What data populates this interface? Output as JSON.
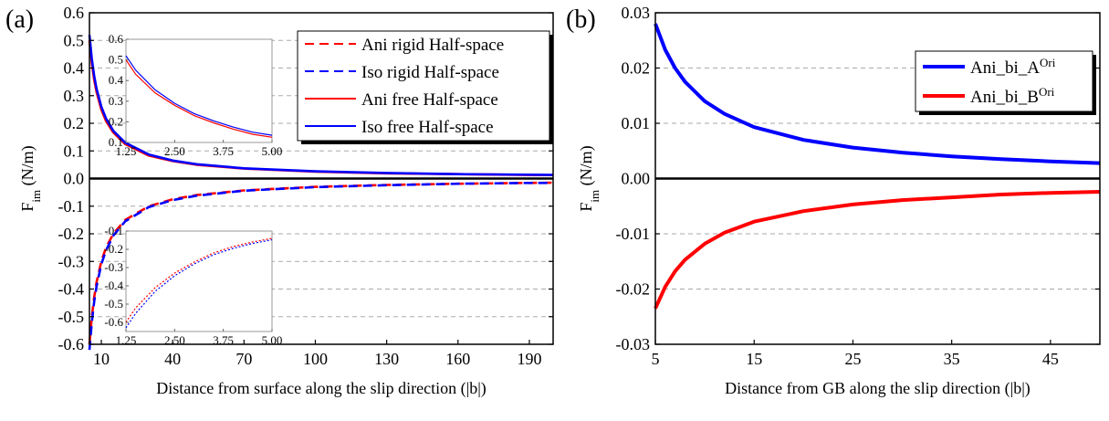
{
  "chart_data": [
    {
      "panel_label": "(a)",
      "type": "line",
      "xlabel": "Distance from surface along the slip direction (|b|)",
      "ylabel_main": "F",
      "ylabel_sub": "im",
      "ylabel_unit": " (N/m)",
      "xlim": [
        5,
        200
      ],
      "ylim": [
        -0.6,
        0.6
      ],
      "xticks": [
        "10",
        "40",
        "70",
        "100",
        "130",
        "160",
        "190"
      ],
      "xtick_values": [
        10,
        40,
        70,
        100,
        130,
        160,
        190
      ],
      "yticks": [
        "-0.6",
        "-0.5",
        "-0.4",
        "-0.3",
        "-0.2",
        "-0.1",
        "0.0",
        "0.1",
        "0.2",
        "0.3",
        "0.4",
        "0.5",
        "0.6"
      ],
      "ytick_values": [
        -0.6,
        -0.5,
        -0.4,
        -0.3,
        -0.2,
        -0.1,
        0.0,
        0.1,
        0.2,
        0.3,
        0.4,
        0.5,
        0.6
      ],
      "grid": "horizontal dashed",
      "legend_position": "top-right",
      "series": [
        {
          "name": "Ani rigid Half-space",
          "color": "#ff0000",
          "style": "dashed",
          "x": [
            5,
            6,
            7,
            8,
            10,
            12,
            15,
            20,
            30,
            40,
            50,
            70,
            100,
            130,
            160,
            190,
            200
          ],
          "y": [
            -0.6,
            -0.5,
            -0.43,
            -0.375,
            -0.3,
            -0.25,
            -0.2,
            -0.15,
            -0.1,
            -0.075,
            -0.06,
            -0.043,
            -0.03,
            -0.023,
            -0.019,
            -0.016,
            -0.015
          ]
        },
        {
          "name": "Iso rigid Half-space",
          "color": "#0000ff",
          "style": "dashed",
          "x": [
            5,
            6,
            7,
            8,
            10,
            12,
            15,
            20,
            30,
            40,
            50,
            70,
            100,
            130,
            160,
            190,
            200
          ],
          "y": [
            -0.62,
            -0.52,
            -0.445,
            -0.39,
            -0.31,
            -0.26,
            -0.207,
            -0.155,
            -0.103,
            -0.078,
            -0.062,
            -0.044,
            -0.031,
            -0.024,
            -0.019,
            -0.016,
            -0.016
          ]
        },
        {
          "name": "Ani free Half-space",
          "color": "#ff0000",
          "style": "solid",
          "x": [
            5,
            6,
            7,
            8,
            10,
            12,
            15,
            20,
            30,
            40,
            50,
            70,
            100,
            130,
            160,
            190,
            200
          ],
          "y": [
            0.5,
            0.417,
            0.357,
            0.313,
            0.25,
            0.208,
            0.167,
            0.125,
            0.083,
            0.063,
            0.05,
            0.036,
            0.025,
            0.019,
            0.016,
            0.013,
            0.0125
          ]
        },
        {
          "name": "Iso free Half-space",
          "color": "#0000ff",
          "style": "solid",
          "x": [
            5,
            6,
            7,
            8,
            10,
            12,
            15,
            20,
            30,
            40,
            50,
            70,
            100,
            130,
            160,
            190,
            200
          ],
          "y": [
            0.52,
            0.433,
            0.371,
            0.325,
            0.26,
            0.217,
            0.173,
            0.13,
            0.087,
            0.065,
            0.052,
            0.037,
            0.026,
            0.02,
            0.016,
            0.014,
            0.013
          ]
        }
      ],
      "insets": [
        {
          "xlim": [
            1.25,
            5.0
          ],
          "ylim": [
            0.1,
            0.6
          ],
          "xticks": [
            "1.25",
            "2.50",
            "3.75",
            "5.00"
          ],
          "xtick_values": [
            1.25,
            2.5,
            3.75,
            5.0
          ],
          "yticks": [
            "0.1",
            "0.2",
            "0.3",
            "0.4",
            "0.5",
            "0.6"
          ],
          "ytick_values": [
            0.1,
            0.2,
            0.3,
            0.4,
            0.5,
            0.6
          ],
          "series": [
            {
              "color": "#ff0000",
              "style": "solid",
              "x": [
                1.25,
                1.5,
                2.0,
                2.5,
                3.0,
                3.5,
                4.0,
                4.5,
                5.0
              ],
              "y": [
                0.5,
                0.43,
                0.34,
                0.28,
                0.23,
                0.195,
                0.165,
                0.14,
                0.125
              ]
            },
            {
              "color": "#0000ff",
              "style": "solid",
              "x": [
                1.25,
                1.5,
                2.0,
                2.5,
                3.0,
                3.5,
                4.0,
                4.5,
                5.0
              ],
              "y": [
                0.52,
                0.45,
                0.355,
                0.29,
                0.24,
                0.205,
                0.175,
                0.15,
                0.135
              ]
            }
          ]
        },
        {
          "xlim": [
            1.25,
            5.0
          ],
          "ylim": [
            -0.65,
            -0.1
          ],
          "xticks": [
            "1.25",
            "2.50",
            "3.75",
            "5.00"
          ],
          "xtick_values": [
            1.25,
            2.5,
            3.75,
            5.0
          ],
          "yticks": [
            "-0.1",
            "-0.2",
            "-0.3",
            "-0.4",
            "-0.5",
            "-0.6"
          ],
          "ytick_values": [
            -0.1,
            -0.2,
            -0.3,
            -0.4,
            -0.5,
            -0.6
          ],
          "series": [
            {
              "color": "#ff0000",
              "style": "dotted",
              "x": [
                1.25,
                1.5,
                2.0,
                2.5,
                3.0,
                3.5,
                4.0,
                4.5,
                5.0
              ],
              "y": [
                -0.6,
                -0.52,
                -0.41,
                -0.33,
                -0.27,
                -0.22,
                -0.185,
                -0.16,
                -0.14
              ]
            },
            {
              "color": "#0000ff",
              "style": "dotted",
              "x": [
                1.25,
                1.5,
                2.0,
                2.5,
                3.0,
                3.5,
                4.0,
                4.5,
                5.0
              ],
              "y": [
                -0.63,
                -0.55,
                -0.43,
                -0.345,
                -0.28,
                -0.23,
                -0.195,
                -0.168,
                -0.148
              ]
            }
          ]
        }
      ]
    },
    {
      "panel_label": "(b)",
      "type": "line",
      "xlabel": "Distance from GB along the slip direction (|b|)",
      "ylabel_main": "F",
      "ylabel_sub": "im",
      "ylabel_unit": " (N/m)",
      "xlim": [
        5,
        50
      ],
      "ylim": [
        -0.03,
        0.03
      ],
      "xticks": [
        "5",
        "15",
        "25",
        "35",
        "45"
      ],
      "xtick_values": [
        5,
        15,
        25,
        35,
        45
      ],
      "yticks": [
        "-0.03",
        "-0.02",
        "-0.01",
        "0.00",
        "0.01",
        "0.02",
        "0.03"
      ],
      "ytick_values": [
        -0.03,
        -0.02,
        -0.01,
        0.0,
        0.01,
        0.02,
        0.03
      ],
      "grid": "horizontal dashed",
      "legend_position": "top-right",
      "series": [
        {
          "name": "Ani_bi_A",
          "name_sup": "Ori",
          "color": "#0000ff",
          "style": "solid",
          "x": [
            5,
            6,
            7,
            8,
            10,
            12,
            15,
            20,
            25,
            30,
            35,
            40,
            45,
            50
          ],
          "y": [
            0.028,
            0.0233,
            0.02,
            0.0175,
            0.014,
            0.0117,
            0.0093,
            0.007,
            0.0056,
            0.0047,
            0.004,
            0.0035,
            0.0031,
            0.0028
          ]
        },
        {
          "name": "Ani_bi_B",
          "name_sup": "Ori",
          "color": "#ff0000",
          "style": "solid",
          "x": [
            5,
            6,
            7,
            8,
            10,
            12,
            15,
            20,
            25,
            30,
            35,
            40,
            45,
            50
          ],
          "y": [
            -0.0235,
            -0.0196,
            -0.0168,
            -0.0147,
            -0.0118,
            -0.0098,
            -0.0078,
            -0.0059,
            -0.0047,
            -0.0039,
            -0.0034,
            -0.0029,
            -0.0026,
            -0.0024
          ]
        }
      ]
    }
  ]
}
